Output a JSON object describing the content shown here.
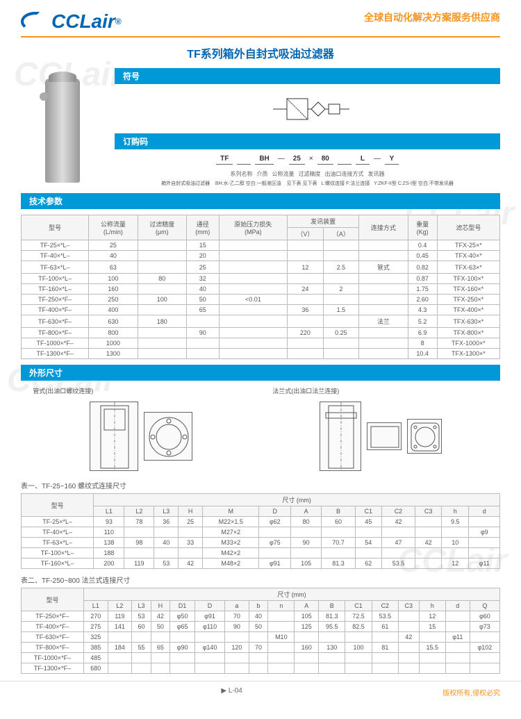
{
  "header": {
    "logo_text": "CCLair",
    "tagline": "全球自动化解决方案服务供应商"
  },
  "title": "TF系列箱外自封式吸油过滤器",
  "sections": {
    "symbol": "符号",
    "order": "订购码",
    "tech": "技术参数",
    "dims": "外形尺寸"
  },
  "order_code": {
    "parts": [
      "TF",
      "",
      "BH",
      "—",
      "25",
      "×",
      "80",
      "",
      "L",
      "—",
      "Y"
    ],
    "labels": [
      "系列名称",
      "介质",
      "公称流量",
      "过滤精度",
      "出油口连接方式",
      "发讯器"
    ],
    "desc_left": "箱外自封式吸油过滤器",
    "desc_mid": "BH:水-乙二醇  空白:一般液压油",
    "desc_r1": "见下表  见下表",
    "desc_r2": "L:螺纹连接  F:法兰连接",
    "desc_r3": "Y:ZKF-II型  C:ZS-I型  空白:不带发讯器"
  },
  "tech_table": {
    "headers": [
      "型号",
      "公称流量\n(L/min)",
      "过滤精度\n(μm)",
      "通径\n(mm)",
      "原始压力损失\n(MPa)",
      "发讯装置",
      "",
      "连接方式",
      "重量\n(Kg)",
      "滤芯型号"
    ],
    "sub_headers": [
      "",
      "",
      "",
      "",
      "",
      "（V）",
      "（A）",
      "",
      "",
      ""
    ],
    "rows": [
      [
        "TF-25×*L–",
        "25",
        "",
        "15",
        "",
        "",
        "",
        "",
        "0.4",
        "TFX-25×*"
      ],
      [
        "TF-40×*L–",
        "40",
        "",
        "20",
        "",
        "",
        "",
        "",
        "0.45",
        "TFX-40×*"
      ],
      [
        "TF-63×*L–",
        "63",
        "",
        "25",
        "",
        "12",
        "2.5",
        "管式",
        "0.82",
        "TFX-63×*"
      ],
      [
        "TF-100×*L–",
        "100",
        "80",
        "32",
        "",
        "",
        "",
        "",
        "0.87",
        "TFX-100×*"
      ],
      [
        "TF-160×*L–",
        "160",
        "",
        "40",
        "",
        "24",
        "2",
        "",
        "1.75",
        "TFX-160×*"
      ],
      [
        "TF-250×*F–",
        "250",
        "100",
        "50",
        "<0.01",
        "",
        "",
        "",
        "2.60",
        "TFX-250×*"
      ],
      [
        "TF-400×*F–",
        "400",
        "",
        "65",
        "",
        "36",
        "1.5",
        "",
        "4.3",
        "TFX-400×*"
      ],
      [
        "TF-630×*F–",
        "630",
        "180",
        "",
        "",
        "",
        "",
        "法兰",
        "5.2",
        "TFX-630×*"
      ],
      [
        "TF-800×*F–",
        "800",
        "",
        "90",
        "",
        "220",
        "0.25",
        "",
        "6.9",
        "TFX-800×*"
      ],
      [
        "TF-1000×*F–",
        "1000",
        "",
        "",
        "",
        "",
        "",
        "",
        "8",
        "TFX-1000×*"
      ],
      [
        "TF-1300×*F–",
        "1300",
        "",
        "",
        "",
        "",
        "",
        "",
        "10.4",
        "TFX-1300×*"
      ]
    ]
  },
  "diag_captions": {
    "left": "管式(出油口螺纹连接)",
    "right": "法兰式(出油口法兰连接)"
  },
  "table1": {
    "caption": "表一、TF-25~160 螺纹式连接尺寸",
    "headers": [
      "型号",
      "L1",
      "L2",
      "L3",
      "H",
      "M",
      "D",
      "A",
      "B",
      "C1",
      "C2",
      "C3",
      "h",
      "d"
    ],
    "group_header": "尺寸      (mm)",
    "rows": [
      [
        "TF-25×*L–",
        "93",
        "78",
        "36",
        "25",
        "M22×1.5",
        "φ62",
        "80",
        "60",
        "45",
        "42",
        "",
        "9.5",
        ""
      ],
      [
        "TF-40×*L–",
        "110",
        "",
        "",
        "",
        "M27×2",
        "",
        "",
        "",
        "",
        "",
        "",
        "",
        "φ9"
      ],
      [
        "TF-63×*L–",
        "138",
        "98",
        "40",
        "33",
        "M33×2",
        "φ75",
        "90",
        "70.7",
        "54",
        "47",
        "42",
        "10",
        ""
      ],
      [
        "TF-100×*L–",
        "188",
        "",
        "",
        "",
        "M42×2",
        "",
        "",
        "",
        "",
        "",
        "",
        "",
        ""
      ],
      [
        "TF-160×*L–",
        "200",
        "119",
        "53",
        "42",
        "M48×2",
        "φ91",
        "105",
        "81.3",
        "62",
        "53.5",
        "",
        "12",
        "φ11"
      ]
    ]
  },
  "table2": {
    "caption": "表二、TF-250~800 法兰式连接尺寸",
    "headers": [
      "型号",
      "L1",
      "L2",
      "L3",
      "H",
      "D1",
      "D",
      "a",
      "b",
      "n",
      "A",
      "B",
      "C1",
      "C2",
      "C3",
      "h",
      "d",
      "Q"
    ],
    "group_header": "尺寸      (mm)",
    "rows": [
      [
        "TF-250×*F–",
        "270",
        "119",
        "53",
        "42",
        "φ50",
        "φ91",
        "70",
        "40",
        "",
        "105",
        "81.3",
        "72.5",
        "53.5",
        "",
        "12",
        "",
        "φ60"
      ],
      [
        "TF-400×*F–",
        "275",
        "141",
        "60",
        "50",
        "φ65",
        "φ110",
        "90",
        "50",
        "",
        "125",
        "95.5",
        "82.5",
        "61",
        "",
        "15",
        "",
        "φ73"
      ],
      [
        "TF-630×*F–",
        "325",
        "",
        "",
        "",
        "",
        "",
        "",
        "",
        "M10",
        "",
        "",
        "",
        "",
        "42",
        "",
        "φ11",
        ""
      ],
      [
        "TF-800×*F–",
        "385",
        "184",
        "55",
        "65",
        "φ90",
        "φ140",
        "120",
        "70",
        "",
        "160",
        "130",
        "100",
        "81",
        "",
        "15.5",
        "",
        "φ102"
      ],
      [
        "TF-1000×*F–",
        "485",
        "",
        "",
        "",
        "",
        "",
        "",
        "",
        "",
        "",
        "",
        "",
        "",
        "",
        "",
        "",
        ""
      ],
      [
        "TF-1300×*F–",
        "680",
        "",
        "",
        "",
        "",
        "",
        "",
        "",
        "",
        "",
        "",
        "",
        "",
        "",
        "",
        "",
        ""
      ]
    ]
  },
  "footer": {
    "page": "L-04",
    "copyright": "版权所有,侵权必究"
  },
  "colors": {
    "brand": "#0066b3",
    "accent": "#f7941e",
    "bar": "#0099d8",
    "border": "#bbb"
  }
}
